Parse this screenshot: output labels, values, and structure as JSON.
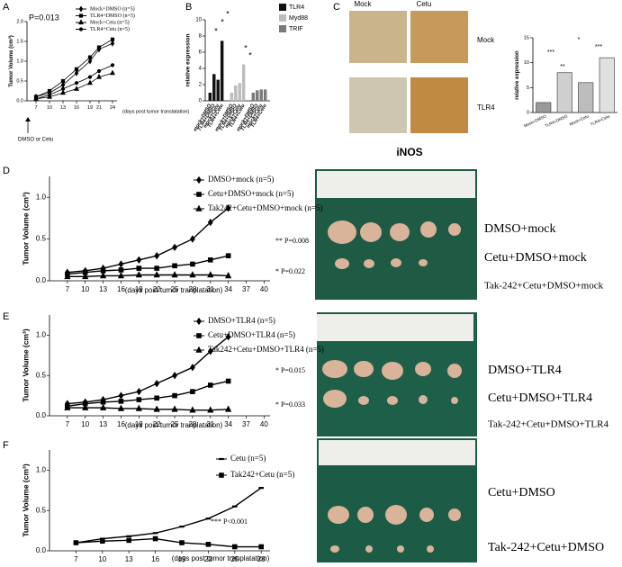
{
  "chart_data": [
    {
      "panel": "A",
      "type": "line",
      "x": [
        7,
        10,
        13,
        16,
        19,
        21,
        24
      ],
      "xlim": [
        5,
        25
      ],
      "xticks": [
        7,
        10,
        13,
        16,
        19,
        21,
        24
      ],
      "ylim": [
        0,
        2
      ],
      "yticks": [
        {
          "value": 0,
          "label": "0.0"
        },
        {
          "value": 0.5,
          "label": "0.5"
        },
        {
          "value": 1,
          "label": "1.0"
        },
        {
          "value": 1.5,
          "label": "1.5"
        },
        {
          "value": 2,
          "label": "2.0"
        }
      ],
      "ylabel": "Tumor Volume (cm³)",
      "xlabel": "(days post tumor translatation)",
      "annotations": [
        "P=0.013",
        "DMSO or Cetu"
      ],
      "series": [
        {
          "name": "Mock+DMSO (n=5)",
          "color": "#000000",
          "marker": "diamond",
          "values": [
            0.1,
            0.2,
            0.4,
            0.7,
            1.0,
            1.3,
            1.45
          ]
        },
        {
          "name": "TLR4+DMSO (n=5)",
          "color": "#000000",
          "marker": "square",
          "values": [
            0.1,
            0.25,
            0.5,
            0.8,
            1.1,
            1.35,
            1.55
          ]
        },
        {
          "name": "Mock+Cetu (n=5)",
          "color": "#000000",
          "marker": "triangle",
          "values": [
            0.05,
            0.1,
            0.2,
            0.3,
            0.45,
            0.6,
            0.7
          ]
        },
        {
          "name": "TLR4+Cetu (n=5)",
          "color": "#000000",
          "marker": "circle",
          "values": [
            0.05,
            0.15,
            0.3,
            0.45,
            0.6,
            0.75,
            0.9
          ]
        }
      ]
    },
    {
      "panel": "B",
      "type": "bar",
      "categories": [
        "mock+DMSO",
        "TLR4+DMSO",
        "mock+Cetu",
        "TLR4+Cetu"
      ],
      "ylim": [
        0,
        10
      ],
      "yticks": [
        0,
        2,
        4,
        6,
        8,
        10
      ],
      "ylabel": "relative expression",
      "annotations": [
        "*",
        "*",
        "*",
        "*",
        "*"
      ],
      "series": [
        {
          "name": "TLR4",
          "color": "#111111",
          "values": [
            1,
            3.3,
            2.6,
            7.4
          ]
        },
        {
          "name": "Myd88",
          "color": "#bdbdbd",
          "values": [
            1,
            1.9,
            2.2,
            4.5
          ]
        },
        {
          "name": "TRIF",
          "color": "#7a7a7a",
          "values": [
            1,
            1.3,
            1.4,
            1.4
          ]
        }
      ]
    },
    {
      "panel": "C",
      "type": "bar",
      "categories": [
        "Mock+DMSO",
        "TLR4+DMSO",
        "Mock+Cetu",
        "TLR4+Cetu"
      ],
      "values": [
        2,
        8,
        6,
        11
      ],
      "colors": [
        "#9a9a9a",
        "#cfcfcf",
        "#bdbdbd",
        "#e0e0e0"
      ],
      "ylim": [
        0,
        15
      ],
      "yticks": [
        0,
        5,
        10,
        15
      ],
      "ylabel": "relative expression",
      "annotations": [
        "***",
        "**",
        "*",
        "***"
      ],
      "photo_labels": [
        "Mock",
        "Cetu",
        "Mock",
        "TLR4",
        "iNOS"
      ]
    },
    {
      "panel": "D",
      "type": "line",
      "x": [
        7,
        10,
        13,
        16,
        19,
        22,
        25,
        28,
        31,
        34
      ],
      "xlim": [
        4,
        41
      ],
      "xticks": [
        7,
        10,
        13,
        16,
        19,
        22,
        25,
        28,
        31,
        34,
        37,
        40
      ],
      "ylim": [
        0,
        1.25
      ],
      "yticks": [
        {
          "value": 0,
          "label": "0.0"
        },
        {
          "value": 0.5,
          "label": "0.5"
        },
        {
          "value": 1,
          "label": "1.0"
        }
      ],
      "ylabel": "Tumor Volume (cm³)",
      "xlabel": "(days post tumor tranplatation)",
      "annotations": [
        "** P=0.008",
        "* P=0.022"
      ],
      "photo_labels": [
        "DMSO+mock",
        "Cetu+DMSO+mock",
        "Tak-242+Cetu+DMSO+mock"
      ],
      "series": [
        {
          "name": "DMSO+mock (n=5)",
          "color": "#000000",
          "marker": "diamond",
          "values": [
            0.1,
            0.12,
            0.15,
            0.2,
            0.25,
            0.3,
            0.4,
            0.5,
            0.7,
            0.87
          ]
        },
        {
          "name": "Cetu+DMSO+mock (n=5)",
          "color": "#000000",
          "marker": "square",
          "values": [
            0.08,
            0.1,
            0.12,
            0.13,
            0.15,
            0.15,
            0.18,
            0.2,
            0.25,
            0.3
          ]
        },
        {
          "name": "Tak242+Cetu+DMSO+mock (n=5)",
          "color": "#000000",
          "marker": "triangle",
          "values": [
            0.05,
            0.05,
            0.06,
            0.06,
            0.07,
            0.07,
            0.07,
            0.07,
            0.07,
            0.06
          ]
        }
      ]
    },
    {
      "panel": "E",
      "type": "line",
      "x": [
        7,
        10,
        13,
        16,
        19,
        22,
        25,
        28,
        31,
        34
      ],
      "xlim": [
        4,
        41
      ],
      "xticks": [
        7,
        10,
        13,
        16,
        19,
        22,
        25,
        28,
        31,
        34,
        37,
        40
      ],
      "ylim": [
        0,
        1.25
      ],
      "yticks": [
        {
          "value": 0,
          "label": "0.0"
        },
        {
          "value": 0.5,
          "label": "0.5"
        },
        {
          "value": 1,
          "label": "1.0"
        }
      ],
      "ylabel": "Tumor Volume (cm³)",
      "xlabel": "(days post tumor tranplatation)",
      "annotations": [
        "* P=0.015",
        "* P=0.033"
      ],
      "photo_labels": [
        "DMSO+TLR4",
        "Cetu+DMSO+TLR4",
        "Tak-242+Cetu+DMSO+TLR4"
      ],
      "series": [
        {
          "name": "DMSO+TLR4 (n=5)",
          "color": "#000000",
          "marker": "diamond",
          "values": [
            0.15,
            0.17,
            0.2,
            0.25,
            0.3,
            0.4,
            0.5,
            0.6,
            0.8,
            0.98
          ]
        },
        {
          "name": "Cetu+DMSO+TLR4 (n=5)",
          "color": "#000000",
          "marker": "square",
          "values": [
            0.12,
            0.15,
            0.17,
            0.18,
            0.2,
            0.22,
            0.25,
            0.3,
            0.38,
            0.43
          ]
        },
        {
          "name": "Tak242+Cetu+DMSO+TLR4 (n=5)",
          "color": "#000000",
          "marker": "triangle",
          "values": [
            0.1,
            0.1,
            0.1,
            0.09,
            0.09,
            0.08,
            0.08,
            0.07,
            0.07,
            0.08
          ]
        }
      ]
    },
    {
      "panel": "F",
      "type": "line",
      "x": [
        7,
        10,
        13,
        16,
        19,
        22,
        25,
        28
      ],
      "xlim": [
        4,
        29
      ],
      "xticks": [
        7,
        10,
        13,
        16,
        19,
        22,
        25,
        28
      ],
      "ylim": [
        0,
        1.25
      ],
      "yticks": [
        {
          "value": 0,
          "label": "0.0"
        },
        {
          "value": 0.5,
          "label": "0.5"
        },
        {
          "value": 1,
          "label": "1.0"
        }
      ],
      "ylabel": "Tumor Volume (cm³)",
      "xlabel": "(days post tumor tranplatation)",
      "annotations": [
        "*** P<0.001"
      ],
      "photo_labels": [
        "Cetu+DMSO",
        "Tak-242+Cetu+DMSO"
      ],
      "series": [
        {
          "name": "Cetu (n=5)",
          "color": "#000000",
          "marker": "dash",
          "values": [
            0.1,
            0.15,
            0.18,
            0.22,
            0.3,
            0.4,
            0.55,
            0.78
          ]
        },
        {
          "name": "Tak242+Cetu (n=5)",
          "color": "#000000",
          "marker": "square",
          "values": [
            0.1,
            0.12,
            0.13,
            0.15,
            0.1,
            0.08,
            0.05,
            0.05
          ]
        }
      ]
    }
  ]
}
